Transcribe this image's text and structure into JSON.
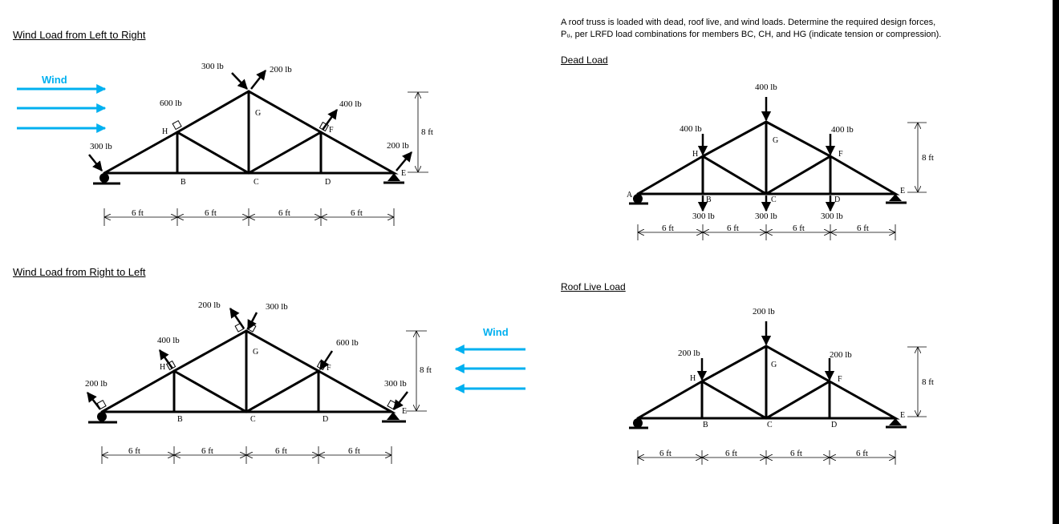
{
  "colors": {
    "wind": "#00b0f0",
    "member": "#000000",
    "background": "#ffffff",
    "border": "#000000"
  },
  "problem": {
    "line1": "A roof truss is loaded with dead, roof live, and wind loads. Determine the required design forces,",
    "line2": "Pᵤ, per LRFD load combinations for members BC, CH, and HG (indicate tension or compression)."
  },
  "common": {
    "span_labels": [
      "6 ft",
      "6 ft",
      "6 ft",
      "6 ft"
    ],
    "height_label": "8 ft",
    "wind_label": "Wind",
    "nodes": {
      "A": "A",
      "B": "B",
      "C": "C",
      "D": "D",
      "E": "E",
      "F": "F",
      "G": "G",
      "H": "H"
    }
  },
  "diagrams": {
    "wind_lr": {
      "heading": "Wind Load from Left to Right",
      "loads": {
        "A": "300 lb",
        "H": "600 lb",
        "G_left": "300 lb",
        "G_right": "200 lb",
        "F": "400 lb",
        "E": "200 lb"
      }
    },
    "wind_rl": {
      "heading": "Wind Load from Right to Left",
      "loads": {
        "A": "200 lb",
        "H": "400 lb",
        "G_left": "200 lb",
        "G_right": "300 lb",
        "F": "600 lb",
        "E": "300 lb"
      }
    },
    "dead": {
      "heading": "Dead Load",
      "loads": {
        "G": "400 lb",
        "H": "400 lb",
        "F": "400 lb",
        "B": "300 lb",
        "C": "300 lb",
        "D": "300 lb"
      }
    },
    "live": {
      "heading": "Roof Live Load",
      "loads": {
        "G": "200 lb",
        "H": "200 lb",
        "F": "200 lb"
      }
    }
  }
}
